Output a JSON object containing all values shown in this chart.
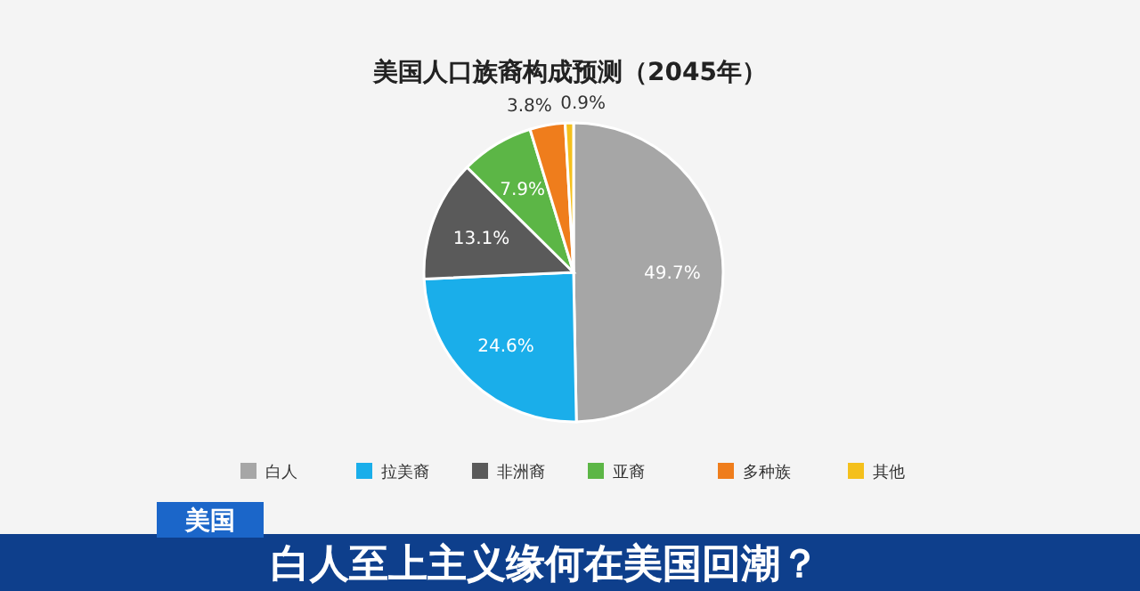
{
  "chart_data": {
    "type": "pie",
    "title": "美国人口族裔构成预测（2045年）",
    "categories": [
      "白人",
      "拉美裔",
      "非洲裔",
      "亚裔",
      "多种族",
      "其他"
    ],
    "values": [
      49.7,
      24.6,
      13.1,
      7.9,
      3.8,
      0.9
    ],
    "colors": [
      "#a6a6a6",
      "#1aaeea",
      "#5a5a5a",
      "#5cb646",
      "#ef7d1c",
      "#f4c01c"
    ],
    "value_labels": [
      "49.7%",
      "24.6%",
      "13.1%",
      "7.9%",
      "3.8%",
      "0.9%"
    ],
    "legend": "bottom",
    "annotations": [
      "美国",
      "白人至上主义缘何在美国回潮？"
    ]
  }
}
